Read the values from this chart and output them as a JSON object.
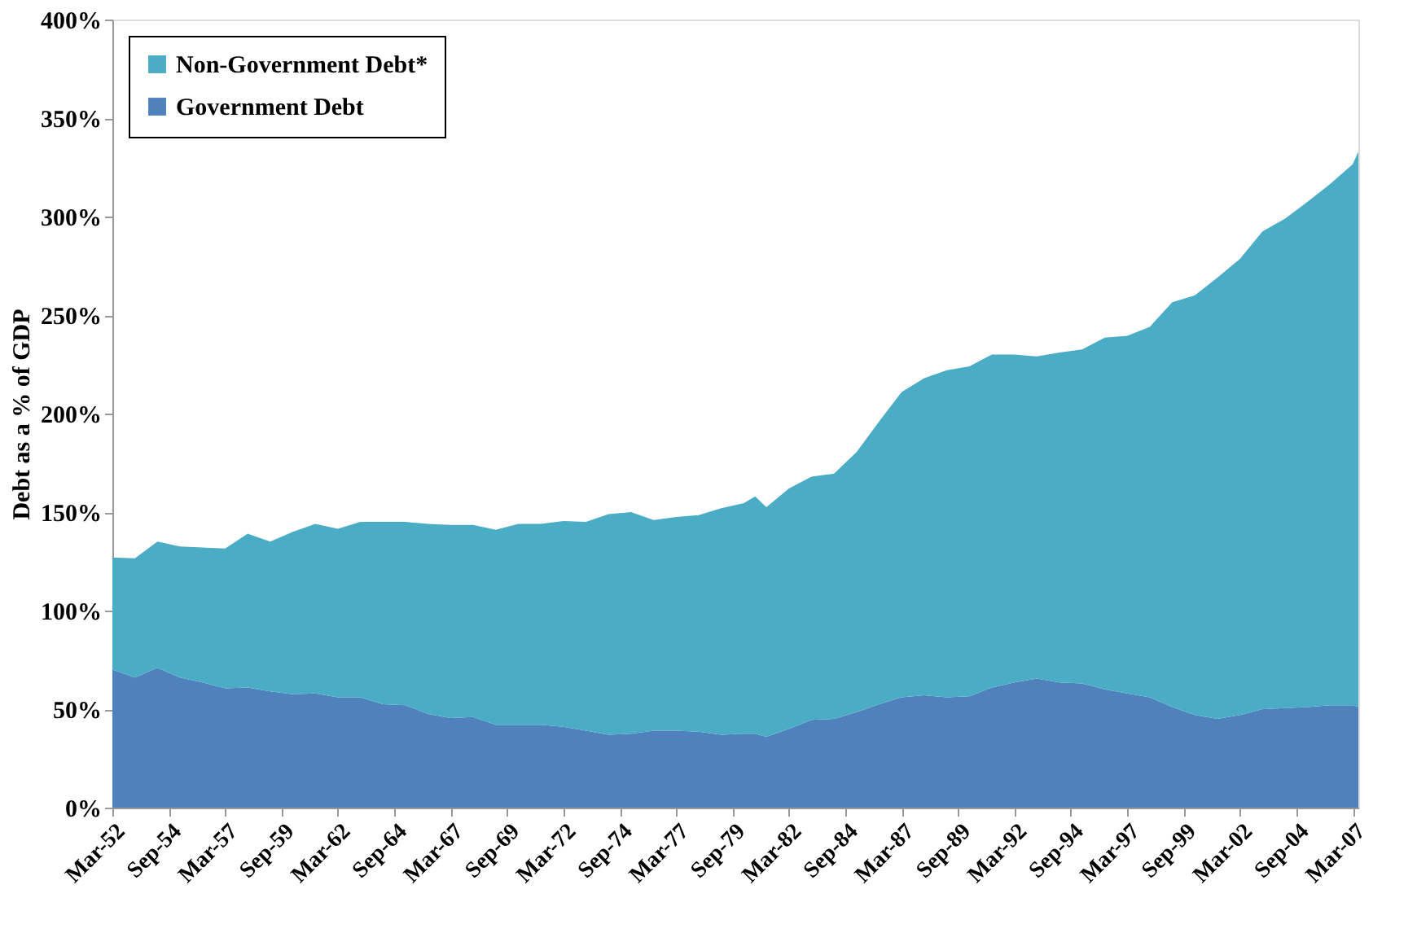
{
  "chart_data": {
    "type": "area",
    "stacked": true,
    "ylabel": "Debt as a % of GDP",
    "legend": "top left",
    "grid": false,
    "x": [
      "1952-03",
      "1953-03",
      "1954-03",
      "1955-03",
      "1956-03",
      "1957-03",
      "1958-03",
      "1959-03",
      "1960-03",
      "1961-03",
      "1962-03",
      "1963-03",
      "1964-03",
      "1965-03",
      "1966-03",
      "1967-03",
      "1968-03",
      "1969-03",
      "1970-03",
      "1971-03",
      "1972-03",
      "1973-03",
      "1974-03",
      "1975-03",
      "1976-03",
      "1977-03",
      "1978-03",
      "1979-03",
      "1980-03",
      "1980-09",
      "1981-03",
      "1982-03",
      "1983-03",
      "1984-03",
      "1985-03",
      "1986-03",
      "1987-03",
      "1988-03",
      "1989-03",
      "1990-03",
      "1991-03",
      "1992-03",
      "1993-03",
      "1994-03",
      "1995-03",
      "1996-03",
      "1997-03",
      "1998-03",
      "1999-03",
      "2000-03",
      "2001-03",
      "2002-03",
      "2003-03",
      "2004-03",
      "2005-03",
      "2006-03",
      "2007-03",
      "2007-06"
    ],
    "series": [
      {
        "name": "Government Debt",
        "color": "#4f81bd",
        "values": [
          70,
          66,
          71,
          66,
          63.5,
          60.5,
          61,
          59,
          57.5,
          58,
          56,
          56,
          52.5,
          52,
          47.5,
          45.5,
          46,
          42,
          42,
          42,
          41,
          39,
          37,
          37.5,
          39,
          39,
          38.5,
          37,
          37.5,
          37.5,
          36,
          40,
          44.5,
          45,
          48.5,
          52.5,
          56,
          57,
          56,
          56.5,
          61,
          63.5,
          65.5,
          63.5,
          63,
          60,
          58,
          56,
          51,
          47,
          45,
          47,
          50,
          50.5,
          51,
          52,
          52,
          51
        ]
      },
      {
        "name": "Non-Government Debt*",
        "color": "#4bacc6",
        "values": [
          57,
          60.5,
          64,
          66.5,
          68.5,
          71,
          78,
          76,
          82.5,
          86,
          85.5,
          89,
          92.5,
          93,
          96.5,
          98,
          97.5,
          99,
          102,
          102,
          104.5,
          106,
          112,
          112.5,
          107,
          108.5,
          110,
          115,
          117,
          120.5,
          116.5,
          122,
          123.5,
          124.5,
          132,
          143.5,
          155,
          161,
          166,
          167.5,
          169,
          166.5,
          163.5,
          167.5,
          169.5,
          178.5,
          181.5,
          188,
          205.5,
          213,
          224,
          231.5,
          242.5,
          248.5,
          256.5,
          264.5,
          274.5,
          282
        ]
      }
    ],
    "ylim": [
      0,
      400
    ],
    "yticks": [
      {
        "value": 0,
        "label": "0%"
      },
      {
        "value": 50,
        "label": "50%"
      },
      {
        "value": 100,
        "label": "100%"
      },
      {
        "value": 150,
        "label": "150%"
      },
      {
        "value": 200,
        "label": "200%"
      },
      {
        "value": 250,
        "label": "250%"
      },
      {
        "value": 300,
        "label": "300%"
      },
      {
        "value": 350,
        "label": "350%"
      },
      {
        "value": 400,
        "label": "400%"
      }
    ],
    "xlim": [
      "1952-03",
      "2007-06"
    ],
    "xticks": [
      {
        "value": "1952-03",
        "label": "Mar-52"
      },
      {
        "value": "1954-09",
        "label": "Sep-54"
      },
      {
        "value": "1957-03",
        "label": "Mar-57"
      },
      {
        "value": "1959-09",
        "label": "Sep-59"
      },
      {
        "value": "1962-03",
        "label": "Mar-62"
      },
      {
        "value": "1964-09",
        "label": "Sep-64"
      },
      {
        "value": "1967-03",
        "label": "Mar-67"
      },
      {
        "value": "1969-09",
        "label": "Sep-69"
      },
      {
        "value": "1972-03",
        "label": "Mar-72"
      },
      {
        "value": "1974-09",
        "label": "Sep-74"
      },
      {
        "value": "1977-03",
        "label": "Mar-77"
      },
      {
        "value": "1979-09",
        "label": "Sep-79"
      },
      {
        "value": "1982-03",
        "label": "Mar-82"
      },
      {
        "value": "1984-09",
        "label": "Sep-84"
      },
      {
        "value": "1987-03",
        "label": "Mar-87"
      },
      {
        "value": "1989-09",
        "label": "Sep-89"
      },
      {
        "value": "1992-03",
        "label": "Mar-92"
      },
      {
        "value": "1994-09",
        "label": "Sep-94"
      },
      {
        "value": "1997-03",
        "label": "Mar-97"
      },
      {
        "value": "1999-09",
        "label": "Sep-99"
      },
      {
        "value": "2002-03",
        "label": "Mar-02"
      },
      {
        "value": "2004-09",
        "label": "Sep-04"
      },
      {
        "value": "2007-03",
        "label": "Mar-07"
      }
    ]
  }
}
